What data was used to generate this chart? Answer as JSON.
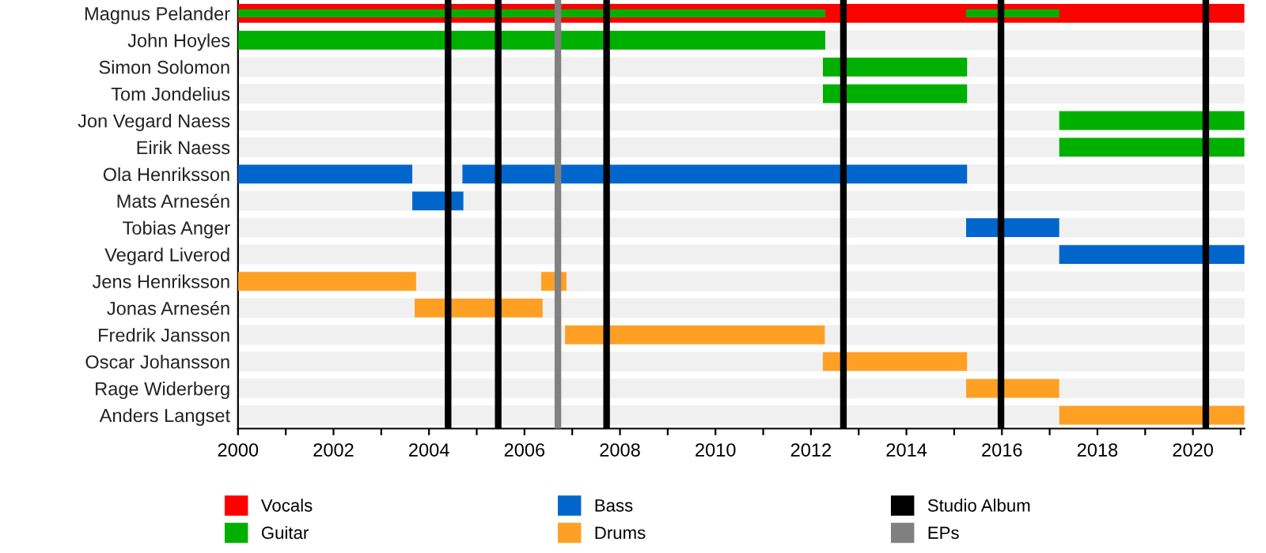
{
  "chart_data": {
    "type": "bar",
    "orientation": "horizontal",
    "categories": [
      "Magnus Pelander",
      "John Hoyles",
      "Simon Solomon",
      "Tom Jondelius",
      "Jon Vegard Naess",
      "Eirik Naess",
      "Ola Henriksson",
      "Mats Arnesén",
      "Tobias Anger",
      "Vegard Liverod",
      "Jens Henriksson",
      "Jonas Arnesén",
      "Fredrik Jansson",
      "Oscar Johansson",
      "Rage Widerberg",
      "Anders Langset"
    ],
    "series": [
      {
        "name": "Vocals",
        "color": "#ff0000",
        "base": [
          2000,
          null,
          null,
          null,
          null,
          null,
          null,
          null,
          null,
          null,
          null,
          null,
          null,
          null,
          null,
          null
        ],
        "values": [
          21.08,
          null,
          null,
          null,
          null,
          null,
          null,
          null,
          null,
          null,
          null,
          null,
          null,
          null,
          null,
          null
        ]
      },
      {
        "name": "Guitar",
        "color": "#00b000",
        "base": [
          2000,
          2000,
          2012.25,
          2012.25,
          2017.2,
          2017.2,
          null,
          null,
          null,
          null,
          null,
          null,
          null,
          null,
          null,
          null
        ],
        "values": [
          12.3,
          12.3,
          3.02,
          3.02,
          3.88,
          3.88,
          null,
          null,
          null,
          null,
          null,
          null,
          null,
          null,
          null,
          null
        ]
      },
      {
        "color": "#00b000",
        "base": [
          2015.25,
          null,
          null,
          null,
          null,
          null,
          null,
          null,
          null,
          null,
          null,
          null,
          null,
          null,
          null,
          null
        ],
        "values": [
          1.95,
          null,
          null,
          null,
          null,
          null,
          null,
          null,
          null,
          null,
          null,
          null,
          null,
          null,
          null,
          null
        ]
      },
      {
        "name": "Bass",
        "color": "#0066cc",
        "base": [
          null,
          null,
          null,
          null,
          null,
          null,
          2000,
          2003.65,
          2015.25,
          2017.2,
          null,
          null,
          null,
          null,
          null,
          null
        ],
        "values": [
          null,
          null,
          null,
          null,
          null,
          null,
          3.65,
          1.07,
          1.95,
          3.88,
          null,
          null,
          null,
          null,
          null,
          null
        ]
      },
      {
        "color": "#0066cc",
        "base": [
          null,
          null,
          null,
          null,
          null,
          null,
          2004.7,
          null,
          null,
          null,
          null,
          null,
          null,
          null,
          null,
          null
        ],
        "values": [
          null,
          null,
          null,
          null,
          null,
          null,
          10.57,
          null,
          null,
          null,
          null,
          null,
          null,
          null,
          null,
          null
        ]
      },
      {
        "name": "Drums",
        "color": "#ffa024",
        "base": [
          null,
          null,
          null,
          null,
          null,
          null,
          null,
          null,
          null,
          null,
          2000,
          2003.7,
          2006.85,
          2012.25,
          2015.25,
          2017.2
        ],
        "values": [
          null,
          null,
          null,
          null,
          null,
          null,
          null,
          null,
          null,
          null,
          3.73,
          2.68,
          5.44,
          3.02,
          1.95,
          3.88
        ]
      },
      {
        "color": "#ffa024",
        "base": [
          null,
          null,
          null,
          null,
          null,
          null,
          null,
          null,
          null,
          null,
          2006.35,
          null,
          null,
          null,
          null,
          null
        ],
        "values": [
          null,
          null,
          null,
          null,
          null,
          null,
          null,
          null,
          null,
          null,
          0.53,
          null,
          null,
          null,
          null,
          null
        ]
      }
    ],
    "ref_lines": [
      {
        "axis": "x",
        "value": 2004.4,
        "label": "Studio Album",
        "color": "#000000"
      },
      {
        "axis": "x",
        "value": 2005.45,
        "color": "#000000"
      },
      {
        "axis": "x",
        "value": 2006.7,
        "label": "EPs",
        "color": "#808080"
      },
      {
        "axis": "x",
        "value": 2007.72,
        "color": "#000000"
      },
      {
        "axis": "x",
        "value": 2012.68,
        "color": "#000000"
      },
      {
        "axis": "x",
        "value": 2015.98,
        "color": "#000000"
      },
      {
        "axis": "x",
        "value": 2020.27,
        "color": "#000000"
      }
    ],
    "xlim": [
      2000,
      2021.08
    ],
    "xticks": [
      2000,
      {
        "value": 2001,
        "label": null
      },
      2002,
      {
        "value": 2003,
        "label": null
      },
      2004,
      {
        "value": 2005,
        "label": null
      },
      2006,
      {
        "value": 2007,
        "label": null
      },
      2008,
      {
        "value": 2009,
        "label": null
      },
      2010,
      {
        "value": 2011,
        "label": null
      },
      2012,
      {
        "value": 2013,
        "label": null
      },
      2014,
      {
        "value": 2015,
        "label": null
      },
      2016,
      {
        "value": 2017,
        "label": null
      },
      2018,
      {
        "value": 2019,
        "label": null
      },
      2020,
      {
        "value": 2021,
        "label": null
      }
    ],
    "grid": "y",
    "legend": "bottom"
  }
}
